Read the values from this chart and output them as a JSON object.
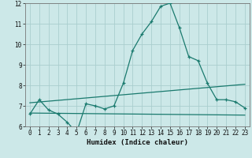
{
  "xlabel": "Humidex (Indice chaleur)",
  "bg_color": "#cce8e8",
  "grid_color": "#aacece",
  "line_color": "#1a7a6e",
  "xlim": [
    -0.5,
    23.5
  ],
  "ylim": [
    6,
    12
  ],
  "yticks": [
    6,
    7,
    8,
    9,
    10,
    11,
    12
  ],
  "xticks": [
    0,
    1,
    2,
    3,
    4,
    5,
    6,
    7,
    8,
    9,
    10,
    11,
    12,
    13,
    14,
    15,
    16,
    17,
    18,
    19,
    20,
    21,
    22,
    23
  ],
  "main_x": [
    0,
    1,
    2,
    3,
    4,
    5,
    6,
    7,
    8,
    9,
    10,
    11,
    12,
    13,
    14,
    15,
    16,
    17,
    18,
    19,
    20,
    21,
    22,
    23
  ],
  "main_y": [
    6.6,
    7.3,
    6.8,
    6.6,
    6.2,
    5.7,
    7.1,
    7.0,
    6.85,
    7.0,
    8.1,
    9.7,
    10.5,
    11.1,
    11.85,
    12.0,
    10.8,
    9.4,
    9.2,
    8.1,
    7.3,
    7.3,
    7.2,
    6.9
  ],
  "trend1_x": [
    0,
    23
  ],
  "trend1_y": [
    7.15,
    8.05
  ],
  "trend2_x": [
    0,
    23
  ],
  "trend2_y": [
    6.65,
    6.55
  ]
}
